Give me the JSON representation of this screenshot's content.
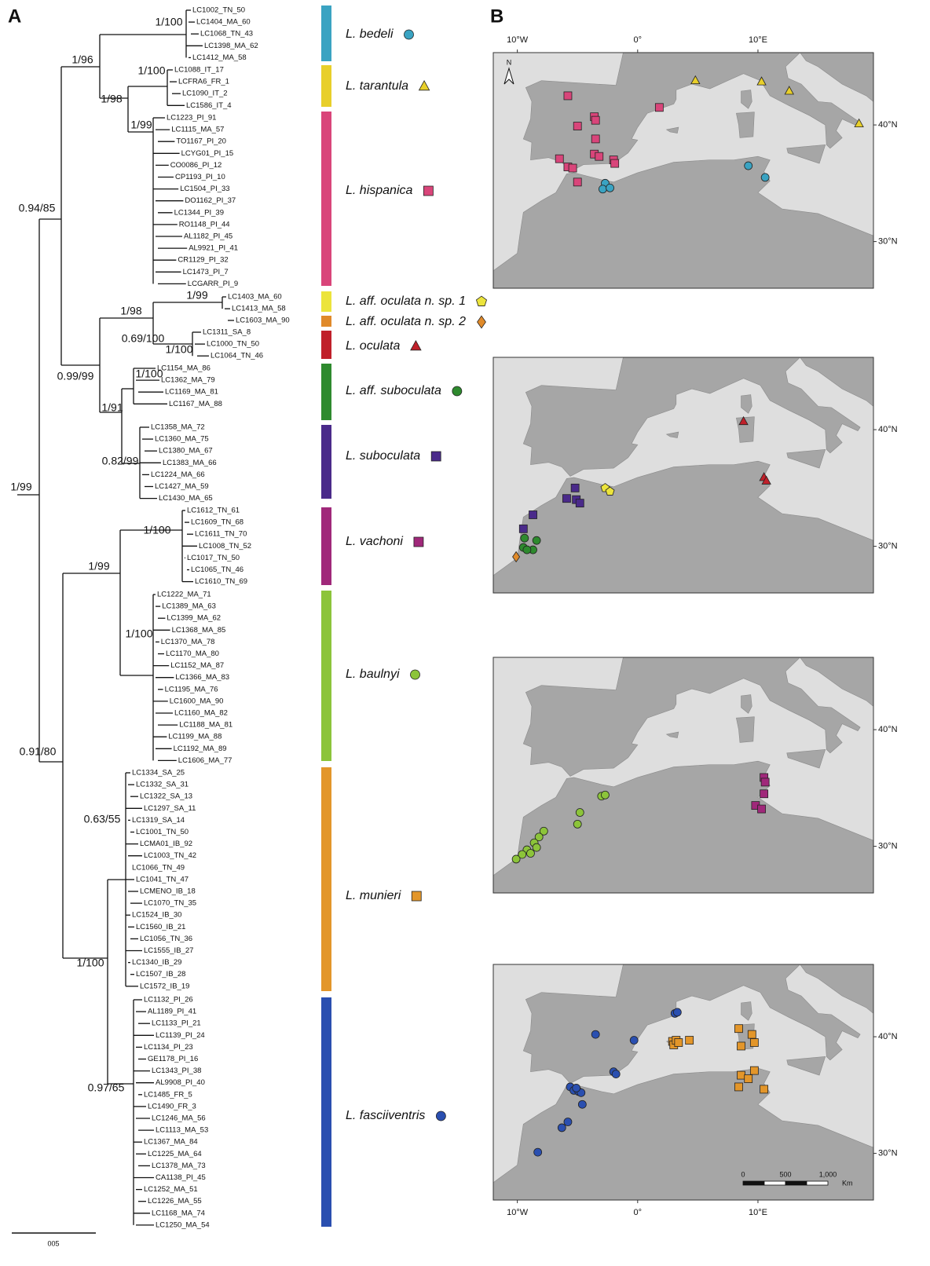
{
  "panels": {
    "a": "A",
    "b": "B"
  },
  "tree": {
    "scale": "005",
    "support": [
      "1/100",
      "1/96",
      "1/100",
      "1/98",
      "1/99",
      "0.94/85",
      "1/99",
      "1/98",
      "0.69/100",
      "1/100",
      "0.99/99",
      "1/100",
      "1/91",
      "0.82/99",
      "1/99",
      "1/100",
      "1/99",
      "1/100",
      "0.91/80",
      "0.63/55",
      "1/100",
      "0.97/65"
    ],
    "clades": [
      {
        "name": "L. bedeli",
        "color": "#3aa3c2",
        "shape": "circle",
        "leaves": [
          "LC1002_TN_50",
          "LC1404_MA_60",
          "LC1068_TN_43",
          "LC1398_MA_62",
          "LC1412_MA_58"
        ],
        "localities": [
          [
            -2.7,
            35.0
          ],
          [
            -2.9,
            34.5
          ],
          [
            -2.3,
            34.6
          ],
          [
            9.2,
            36.5
          ],
          [
            10.6,
            35.5
          ]
        ]
      },
      {
        "name": "L. tarantula",
        "color": "#e8cf2a",
        "shape": "triangle",
        "leaves": [
          "LC1088_IT_17",
          "LCFRA6_FR_1",
          "LC1090_IT_2",
          "LC1586_IT_4"
        ],
        "localities": [
          [
            4.8,
            43.8
          ],
          [
            10.3,
            43.7
          ],
          [
            12.6,
            42.9
          ],
          [
            18.4,
            40.1
          ]
        ]
      },
      {
        "name": "L. hispanica",
        "color": "#d9457a",
        "shape": "square",
        "leaves": [
          "LC1223_PI_91",
          "LC1115_MA_57",
          "TO1167_PI_20",
          "LCYG01_PI_15",
          "CO0086_PI_12",
          "CP1193_PI_10",
          "LC1504_PI_33",
          "DO1162_PI_37",
          "LC1344_PI_39",
          "RO1148_PI_44",
          "AL1182_PI_45",
          "AL9921_PI_41",
          "CR1129_PI_32",
          "LC1473_PI_7",
          "LCGARR_PI_9"
        ],
        "localities": [
          [
            -5.8,
            42.5
          ],
          [
            -3.6,
            40.7
          ],
          [
            -3.5,
            40.4
          ],
          [
            -5.0,
            39.9
          ],
          [
            -3.5,
            38.8
          ],
          [
            -3.6,
            37.5
          ],
          [
            -3.2,
            37.3
          ],
          [
            -2.0,
            37.0
          ],
          [
            -1.9,
            36.7
          ],
          [
            -6.5,
            37.1
          ],
          [
            -5.8,
            36.4
          ],
          [
            -5.4,
            36.3
          ],
          [
            -5.0,
            35.1
          ],
          [
            1.8,
            41.5
          ]
        ]
      },
      {
        "name": "L. aff. oculata n. sp. 1",
        "color": "#ece43c",
        "shape": "pentagon",
        "leaves": [
          "LC1403_MA_60",
          "LC1413_MA_58"
        ],
        "localities": [
          [
            -2.7,
            35.0
          ],
          [
            -2.3,
            34.7
          ]
        ]
      },
      {
        "name": "L. aff. oculata n. sp. 2",
        "color": "#e08a2a",
        "shape": "diamond",
        "leaves": [
          "LC1603_MA_90"
        ],
        "localities": [
          [
            -10.1,
            29.1
          ]
        ]
      },
      {
        "name": "L. oculata",
        "color": "#c0202a",
        "shape": "triangle",
        "leaves": [
          "LC1311_SA_8",
          "LC1000_TN_50",
          "LC1064_TN_46"
        ],
        "localities": [
          [
            8.8,
            40.7
          ],
          [
            10.5,
            35.9
          ],
          [
            10.7,
            35.6
          ]
        ]
      },
      {
        "name": "L. aff. suboculata",
        "color": "#2e8a2e",
        "shape": "circle",
        "leaves": [
          "LC1154_MA_86",
          "LC1362_MA_79",
          "LC1169_MA_81",
          "LC1167_MA_88"
        ],
        "localities": [
          [
            -9.4,
            30.7
          ],
          [
            -8.4,
            30.5
          ],
          [
            -9.5,
            29.9
          ],
          [
            -8.7,
            29.7
          ],
          [
            -9.2,
            29.7
          ]
        ]
      },
      {
        "name": "L. suboculata",
        "color": "#4a2a8a",
        "shape": "square",
        "leaves": [
          "LC1358_MA_72",
          "LC1360_MA_75",
          "LC1380_MA_67",
          "LC1383_MA_66",
          "LC1224_MA_66",
          "LC1427_MA_59",
          "LC1430_MA_65"
        ],
        "localities": [
          [
            -5.2,
            35.0
          ],
          [
            -5.9,
            34.1
          ],
          [
            -5.1,
            34.0
          ],
          [
            -4.8,
            33.7
          ],
          [
            -8.7,
            32.7
          ],
          [
            -9.5,
            31.5
          ]
        ]
      },
      {
        "name": "L. vachoni",
        "color": "#a0287a",
        "shape": "square",
        "leaves": [
          "LC1612_TN_61",
          "LC1609_TN_68",
          "LC1611_TN_70",
          "LC1008_TN_52",
          "LC1017_TN_50",
          "LC1065_TN_46",
          "LC1610_TN_69"
        ],
        "localities": [
          [
            10.5,
            35.9
          ],
          [
            10.6,
            35.5
          ],
          [
            10.5,
            34.5
          ],
          [
            9.8,
            33.5
          ],
          [
            10.3,
            33.2
          ]
        ]
      },
      {
        "name": "L. baulnyi",
        "color": "#8cc43a",
        "shape": "circle",
        "leaves": [
          "LC1222_MA_71",
          "LC1389_MA_63",
          "LC1399_MA_62",
          "LC1368_MA_85",
          "LC1370_MA_78",
          "LC1170_MA_80",
          "LC1152_MA_87",
          "LC1366_MA_83",
          "LC1195_MA_76",
          "LC1600_MA_90",
          "LC1160_MA_82",
          "LC1188_MA_81",
          "LC1199_MA_88",
          "LC1192_MA_89",
          "LC1606_MA_77"
        ],
        "localities": [
          [
            -3.0,
            34.3
          ],
          [
            -2.7,
            34.4
          ],
          [
            -4.8,
            32.9
          ],
          [
            -5.0,
            31.9
          ],
          [
            -7.8,
            31.3
          ],
          [
            -8.2,
            30.8
          ],
          [
            -8.6,
            30.3
          ],
          [
            -8.4,
            29.9
          ],
          [
            -9.2,
            29.7
          ],
          [
            -9.6,
            29.3
          ],
          [
            -10.1,
            28.9
          ],
          [
            -8.9,
            29.4
          ]
        ]
      },
      {
        "name": "L. munieri",
        "color": "#e3962a",
        "shape": "square",
        "leaves": [
          "LC1334_SA_25",
          "LC1332_SA_31",
          "LC1322_SA_13",
          "LC1297_SA_11",
          "LC1319_SA_14",
          "LC1001_TN_50",
          "LCMA01_IB_92",
          "LC1003_TN_42",
          "LC1066_TN_49",
          "LC1041_TN_47",
          "LCMENO_IB_18",
          "LC1070_TN_35",
          "LC1524_IB_30",
          "LC1560_IB_21",
          "LC1056_TN_36",
          "LC1555_IB_27",
          "LC1340_IB_29",
          "LC1507_IB_28",
          "LC1572_IB_19"
        ],
        "localities": [
          [
            2.9,
            39.6
          ],
          [
            3.0,
            39.3
          ],
          [
            3.2,
            39.7
          ],
          [
            3.4,
            39.5
          ],
          [
            4.3,
            39.7
          ],
          [
            8.4,
            40.7
          ],
          [
            9.5,
            40.2
          ],
          [
            9.7,
            39.5
          ],
          [
            8.6,
            39.2
          ],
          [
            8.6,
            36.7
          ],
          [
            9.7,
            37.1
          ],
          [
            8.4,
            35.7
          ],
          [
            9.2,
            36.4
          ],
          [
            10.5,
            35.5
          ]
        ]
      },
      {
        "name": "L. fasciiventris",
        "color": "#2a4fb0",
        "shape": "circle",
        "leaves": [
          "LC1132_PI_26",
          "AL1189_PI_41",
          "LC1133_PI_21",
          "LC1139_PI_24",
          "LC1134_PI_23",
          "GE1178_PI_16",
          "LC1343_PI_38",
          "AL9908_PI_40",
          "LC1485_FR_5",
          "LC1490_FR_3",
          "LC1246_MA_56",
          "LC1113_MA_53",
          "LC1367_MA_84",
          "LC1225_MA_64",
          "LC1378_MA_73",
          "CA1138_PI_45",
          "LC1252_MA_51",
          "LC1226_MA_55",
          "LC1168_MA_74",
          "LC1250_MA_54"
        ],
        "localities": [
          [
            3.1,
            42.0
          ],
          [
            3.3,
            42.1
          ],
          [
            -3.5,
            40.2
          ],
          [
            -0.3,
            39.7
          ],
          [
            -2.0,
            37.0
          ],
          [
            -1.8,
            36.8
          ],
          [
            -5.6,
            35.7
          ],
          [
            -5.3,
            35.4
          ],
          [
            -4.9,
            35.3
          ],
          [
            -4.7,
            35.2
          ],
          [
            -5.1,
            35.6
          ],
          [
            -4.6,
            34.2
          ],
          [
            -5.8,
            32.7
          ],
          [
            -6.3,
            32.2
          ],
          [
            -8.3,
            30.1
          ]
        ]
      }
    ]
  },
  "maps": {
    "xlim": [
      -12,
      19.6
    ],
    "ylim": [
      26,
      46.2
    ],
    "xticks": [
      {
        "value": -10,
        "label": "10°W"
      },
      {
        "value": 0,
        "label": "0°"
      },
      {
        "value": 10,
        "label": "10°E"
      }
    ],
    "yticks": [
      {
        "value": 40,
        "label": "40°N"
      },
      {
        "value": 30,
        "label": "30°N"
      }
    ],
    "north": "N",
    "scalebar": [
      "0",
      "500",
      "1,000",
      "Km"
    ]
  }
}
